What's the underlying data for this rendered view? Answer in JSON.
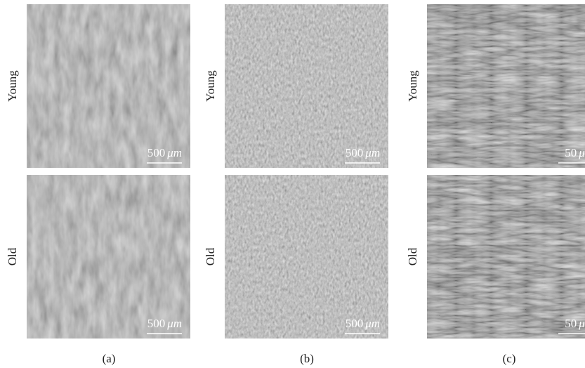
{
  "panels": [
    {
      "caption": "(a)",
      "rows": [
        {
          "label": "Young",
          "scale_bar": {
            "value": "500",
            "unit": "μm"
          }
        },
        {
          "label": "Old",
          "scale_bar": {
            "value": "500",
            "unit": "μm"
          }
        }
      ]
    },
    {
      "caption": "(b)",
      "rows": [
        {
          "label": "Young",
          "scale_bar": {
            "value": "500",
            "unit": "μm"
          }
        },
        {
          "label": "Old",
          "scale_bar": {
            "value": "500",
            "unit": "μm"
          }
        }
      ]
    },
    {
      "caption": "(c)",
      "rows": [
        {
          "label": "Young",
          "scale_bar": {
            "value": "50",
            "unit": "μm"
          }
        },
        {
          "label": "Old",
          "scale_bar": {
            "value": "50",
            "unit": "μm"
          }
        }
      ]
    }
  ]
}
